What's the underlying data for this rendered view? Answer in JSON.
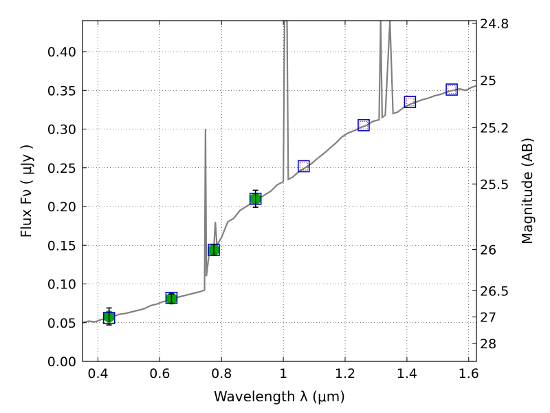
{
  "chart_data": {
    "type": "scatter",
    "title": "",
    "xlabel": "Wavelength  λ (μm)",
    "ylabel": "Flux  Fν  ( μJy )",
    "ylabel_right": "Magnitude (AB)",
    "xlim": [
      0.35,
      1.625
    ],
    "ylim": [
      0.0,
      0.44
    ],
    "grid": true,
    "grid_style": "dotted",
    "x_ticks": [
      0.4,
      0.6,
      0.8,
      1.0,
      1.2,
      1.4,
      1.6
    ],
    "x_tick_labels": [
      "0.4",
      "0.6",
      "0.8",
      "1",
      "1.2",
      "1.4",
      "1.6"
    ],
    "y_ticks": [
      0.0,
      0.05,
      0.1,
      0.15,
      0.2,
      0.25,
      0.3,
      0.35,
      0.4
    ],
    "y_tick_labels": [
      "0.00",
      "0.05",
      "0.10",
      "0.15",
      "0.20",
      "0.25",
      "0.30",
      "0.35",
      "0.40"
    ],
    "right_axis_ticks": [
      {
        "flux": 0.4365,
        "label": "24.8"
      },
      {
        "flux": 0.363,
        "label": "25"
      },
      {
        "flux": 0.302,
        "label": "25.2"
      },
      {
        "flux": 0.2291,
        "label": "25.5"
      },
      {
        "flux": 0.1445,
        "label": "26"
      },
      {
        "flux": 0.0912,
        "label": "26.5"
      },
      {
        "flux": 0.0575,
        "label": "27"
      },
      {
        "flux": 0.0229,
        "label": "28"
      }
    ],
    "series": [
      {
        "kind": "model_spectrum",
        "color": "#808080",
        "points": [
          [
            0.35,
            0.05
          ],
          [
            0.37,
            0.052
          ],
          [
            0.39,
            0.051
          ],
          [
            0.41,
            0.054
          ],
          [
            0.43,
            0.055
          ],
          [
            0.45,
            0.058
          ],
          [
            0.47,
            0.061
          ],
          [
            0.49,
            0.062
          ],
          [
            0.51,
            0.064
          ],
          [
            0.53,
            0.066
          ],
          [
            0.55,
            0.068
          ],
          [
            0.57,
            0.072
          ],
          [
            0.59,
            0.074
          ],
          [
            0.61,
            0.077
          ],
          [
            0.63,
            0.079
          ],
          [
            0.65,
            0.082
          ],
          [
            0.67,
            0.084
          ],
          [
            0.69,
            0.086
          ],
          [
            0.71,
            0.088
          ],
          [
            0.73,
            0.09
          ],
          [
            0.745,
            0.092
          ],
          [
            0.748,
            0.3
          ],
          [
            0.751,
            0.11
          ],
          [
            0.76,
            0.14
          ],
          [
            0.775,
            0.145
          ],
          [
            0.78,
            0.18
          ],
          [
            0.785,
            0.15
          ],
          [
            0.8,
            0.16
          ],
          [
            0.81,
            0.17
          ],
          [
            0.82,
            0.18
          ],
          [
            0.84,
            0.185
          ],
          [
            0.86,
            0.195
          ],
          [
            0.88,
            0.2
          ],
          [
            0.9,
            0.205
          ],
          [
            0.92,
            0.21
          ],
          [
            0.94,
            0.215
          ],
          [
            0.96,
            0.22
          ],
          [
            0.98,
            0.228
          ],
          [
            1.0,
            0.232
          ],
          [
            1.004,
            0.44
          ],
          [
            1.012,
            0.44
          ],
          [
            1.016,
            0.235
          ],
          [
            1.03,
            0.238
          ],
          [
            1.05,
            0.245
          ],
          [
            1.07,
            0.25
          ],
          [
            1.09,
            0.255
          ],
          [
            1.11,
            0.262
          ],
          [
            1.13,
            0.268
          ],
          [
            1.15,
            0.275
          ],
          [
            1.17,
            0.282
          ],
          [
            1.19,
            0.29
          ],
          [
            1.21,
            0.295
          ],
          [
            1.23,
            0.298
          ],
          [
            1.25,
            0.302
          ],
          [
            1.27,
            0.305
          ],
          [
            1.29,
            0.31
          ],
          [
            1.31,
            0.312
          ],
          [
            1.315,
            0.44
          ],
          [
            1.32,
            0.315
          ],
          [
            1.33,
            0.318
          ],
          [
            1.345,
            0.44
          ],
          [
            1.355,
            0.32
          ],
          [
            1.37,
            0.322
          ],
          [
            1.39,
            0.328
          ],
          [
            1.41,
            0.332
          ],
          [
            1.43,
            0.335
          ],
          [
            1.45,
            0.338
          ],
          [
            1.47,
            0.34
          ],
          [
            1.49,
            0.343
          ],
          [
            1.51,
            0.345
          ],
          [
            1.53,
            0.348
          ],
          [
            1.55,
            0.35
          ],
          [
            1.57,
            0.352
          ],
          [
            1.59,
            0.35
          ],
          [
            1.61,
            0.354
          ],
          [
            1.625,
            0.356
          ]
        ]
      },
      {
        "kind": "observed_photometry",
        "marker": "circle",
        "color": "#00aa00",
        "points": [
          {
            "x": 0.436,
            "y": 0.058,
            "err": 0.011
          },
          {
            "x": 0.638,
            "y": 0.081,
            "err": 0.006
          },
          {
            "x": 0.775,
            "y": 0.144,
            "err": 0.007
          },
          {
            "x": 0.91,
            "y": 0.21,
            "err": 0.011
          }
        ]
      },
      {
        "kind": "model_band_flux",
        "marker": "square",
        "color": "#0000cc",
        "points": [
          {
            "x": 0.436,
            "y": 0.056
          },
          {
            "x": 0.638,
            "y": 0.082
          },
          {
            "x": 0.775,
            "y": 0.144
          },
          {
            "x": 0.91,
            "y": 0.21
          },
          {
            "x": 1.066,
            "y": 0.252
          },
          {
            "x": 1.26,
            "y": 0.305
          },
          {
            "x": 1.41,
            "y": 0.335
          },
          {
            "x": 1.545,
            "y": 0.351
          }
        ]
      },
      {
        "kind": "upper_limit_photometry",
        "marker": "square",
        "color": "#d04040",
        "points": [
          {
            "x": 1.066,
            "y": 0.252
          },
          {
            "x": 1.26,
            "y": 0.305
          },
          {
            "x": 1.41,
            "y": 0.335
          },
          {
            "x": 1.545,
            "y": 0.351
          }
        ]
      }
    ]
  }
}
